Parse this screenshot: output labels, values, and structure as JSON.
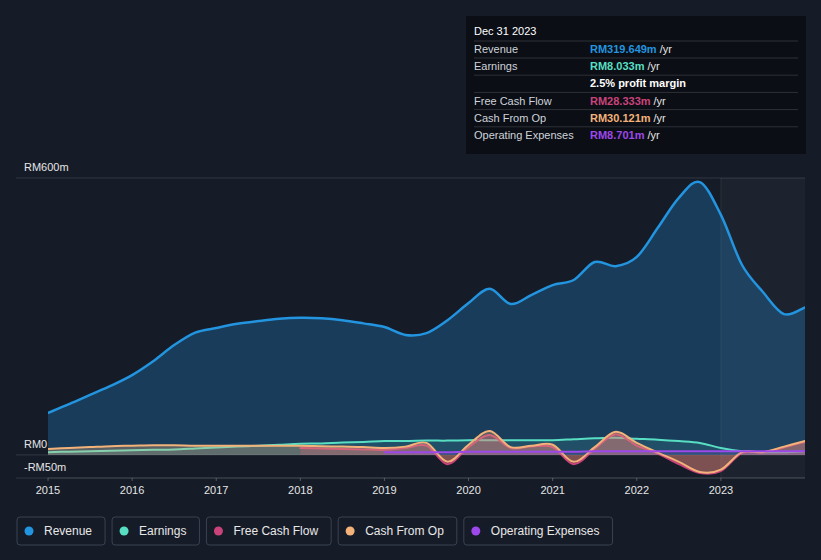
{
  "chart_data": {
    "type": "area",
    "x": [
      2015,
      2015.25,
      2015.5,
      2015.75,
      2016,
      2016.25,
      2016.5,
      2016.75,
      2017,
      2017.25,
      2017.5,
      2017.75,
      2018,
      2018.25,
      2018.5,
      2018.75,
      2019,
      2019.25,
      2019.5,
      2019.75,
      2020,
      2020.25,
      2020.5,
      2020.75,
      2021,
      2021.25,
      2021.5,
      2021.75,
      2022,
      2022.25,
      2022.5,
      2022.75,
      2023,
      2023.25,
      2023.5,
      2023.75,
      2024
    ],
    "xlim": [
      2015,
      2024
    ],
    "xticks": [
      2015,
      2016,
      2017,
      2018,
      2019,
      2020,
      2021,
      2022,
      2023
    ],
    "ylim": [
      -50,
      600
    ],
    "yticks": [
      {
        "value": -50,
        "label": "-RM50m"
      },
      {
        "value": 0,
        "label": "RM0"
      },
      {
        "value": 600,
        "label": "RM600m"
      }
    ],
    "grid": true,
    "legend": "bottom",
    "series": [
      {
        "name": "Revenue",
        "color": "#2394df",
        "values": [
          91,
          110,
          130,
          150,
          173,
          203,
          238,
          265,
          275,
          284,
          290,
          295,
          297,
          296,
          292,
          285,
          277,
          260,
          264,
          292,
          329,
          360,
          327,
          347,
          368,
          379,
          418,
          409,
          429,
          492,
          557,
          591,
          520,
          412,
          353,
          305,
          319.6
        ]
      },
      {
        "name": "Earnings",
        "color": "#58dfc3",
        "values": [
          6,
          7,
          8,
          9,
          10,
          11,
          12,
          14,
          16,
          18,
          20,
          22,
          24,
          25,
          27,
          28,
          30,
          30,
          31,
          31,
          32,
          32,
          32,
          32,
          32,
          34,
          36,
          37,
          35,
          33,
          30,
          26,
          15,
          8,
          6,
          6,
          8.0
        ]
      },
      {
        "name": "Free Cash Flow",
        "color": "#c9437a",
        "values": [
          null,
          null,
          null,
          null,
          null,
          null,
          null,
          null,
          null,
          null,
          null,
          null,
          15,
          14,
          13,
          12,
          11,
          15,
          20,
          -20,
          17,
          43,
          15,
          18,
          17,
          -20,
          13,
          45,
          20,
          3,
          -20,
          -39,
          -35,
          4,
          6,
          16,
          28.3
        ]
      },
      {
        "name": "Cash From Op",
        "color": "#f2b279",
        "values": [
          13,
          15,
          17,
          19,
          20,
          21,
          21,
          20,
          20,
          20,
          20,
          20,
          20,
          19,
          18,
          17,
          15,
          18,
          26,
          -15,
          22,
          52,
          17,
          20,
          22,
          -15,
          17,
          50,
          26,
          5,
          -15,
          -37,
          -32,
          6,
          6,
          18,
          30.1
        ]
      },
      {
        "name": "Operating Expenses",
        "color": "#9d48ea",
        "values": [
          null,
          null,
          null,
          null,
          null,
          null,
          null,
          null,
          null,
          null,
          null,
          null,
          null,
          null,
          null,
          null,
          6,
          6,
          6,
          6,
          7,
          7,
          7,
          7,
          7,
          7,
          8,
          8,
          8,
          8,
          8,
          8,
          8,
          8,
          8,
          8,
          8.7
        ]
      }
    ],
    "tooltip": {
      "title": "Dec 31 2023",
      "rows": [
        {
          "label": "Revenue",
          "value": "RM319.649m",
          "unit": "/yr",
          "color": "#2394df"
        },
        {
          "label": "Earnings",
          "value": "RM8.033m",
          "unit": "/yr",
          "color": "#58dfc3"
        },
        {
          "value": "2.5% profit margin",
          "color": "#ffffff"
        },
        {
          "label": "Free Cash Flow",
          "value": "RM28.333m",
          "unit": "/yr",
          "color": "#c9437a"
        },
        {
          "label": "Cash From Op",
          "value": "RM30.121m",
          "unit": "/yr",
          "color": "#f2b279"
        },
        {
          "label": "Operating Expenses",
          "value": "RM8.701m",
          "unit": "/yr",
          "color": "#9d48ea"
        }
      ]
    }
  }
}
